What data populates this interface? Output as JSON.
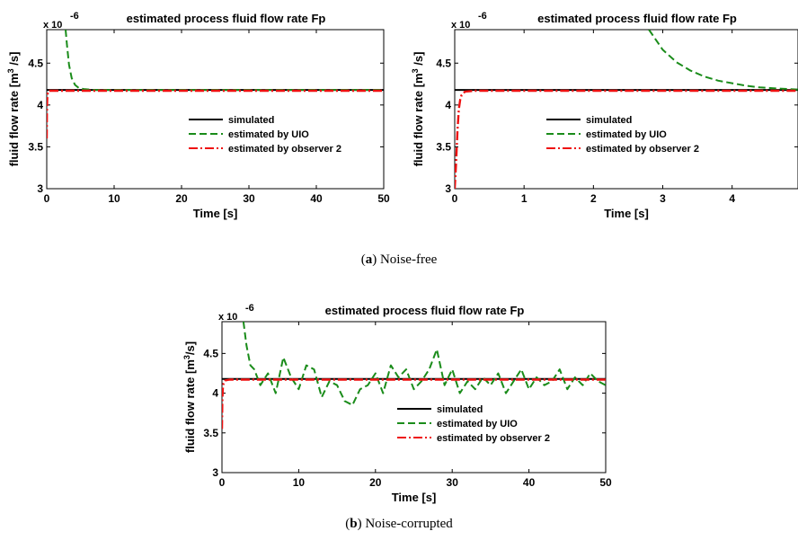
{
  "captions": {
    "a_letter": "a",
    "a_text": " Noise-free",
    "b_letter": "b",
    "b_text": " Noise-corrupted"
  },
  "colors": {
    "simulated": "#000000",
    "uio": "#1a8c1a",
    "observer2": "#ee1111"
  },
  "chart_data": [
    {
      "type": "line",
      "title": "estimated process fluid flow rate Fp",
      "xlabel": "Time [s]",
      "ylabel": "fluid flow rate [m³/s]",
      "ylabel_prefix": "fluid flow rate [m",
      "ylabel_sup": "3",
      "ylabel_suffix": " /s]",
      "multiplier_base": "x 10",
      "multiplier_exp": "-6",
      "xlim": [
        0,
        50
      ],
      "ylim": [
        3,
        4.9
      ],
      "xticks": [
        0,
        10,
        20,
        30,
        40,
        50
      ],
      "yticks": [
        3,
        3.5,
        4,
        4.5
      ],
      "grid": false,
      "legend_position": "center-right",
      "series": [
        {
          "name": "simulated",
          "style": "solid",
          "x": [
            0,
            50
          ],
          "y": [
            4.18,
            4.18
          ]
        },
        {
          "name": "estimated by UIO",
          "style": "dashed",
          "x": [
            2.8,
            3.0,
            3.3,
            3.7,
            4.2,
            4.8,
            5.5,
            7,
            10,
            50
          ],
          "y": [
            4.9,
            4.72,
            4.48,
            4.32,
            4.24,
            4.2,
            4.19,
            4.18,
            4.18,
            4.18
          ]
        },
        {
          "name": "estimated by observer 2",
          "style": "dashdot",
          "x": [
            0,
            0.03,
            0.06,
            0.1,
            0.2,
            0.4,
            1,
            50
          ],
          "y": [
            3.6,
            3.9,
            4.05,
            4.12,
            4.16,
            4.17,
            4.17,
            4.17
          ]
        }
      ]
    },
    {
      "type": "line",
      "title": "estimated process fluid flow rate Fp",
      "xlabel": "Time [s]",
      "ylabel": "fluid flow rate [m³/s]",
      "ylabel_prefix": "fluid flow rate [m",
      "ylabel_sup": "3",
      "ylabel_suffix": " /s]",
      "multiplier_base": "x 10",
      "multiplier_exp": "-6",
      "xlim": [
        0,
        4.95
      ],
      "ylim": [
        3,
        4.9
      ],
      "xticks": [
        0,
        1,
        2,
        3,
        4
      ],
      "yticks": [
        3,
        3.5,
        4,
        4.5
      ],
      "grid": false,
      "legend_position": "center-right",
      "series": [
        {
          "name": "simulated",
          "style": "solid",
          "x": [
            0,
            4.95
          ],
          "y": [
            4.18,
            4.18
          ]
        },
        {
          "name": "estimated by UIO",
          "style": "dashed",
          "x": [
            2.8,
            3.0,
            3.2,
            3.4,
            3.6,
            3.8,
            4.0,
            4.2,
            4.4,
            4.6,
            4.8,
            4.95
          ],
          "y": [
            4.9,
            4.66,
            4.51,
            4.41,
            4.34,
            4.29,
            4.26,
            4.23,
            4.21,
            4.2,
            4.19,
            4.185
          ]
        },
        {
          "name": "estimated by observer 2",
          "style": "dashdot",
          "x": [
            0,
            0.02,
            0.04,
            0.06,
            0.08,
            0.1,
            0.15,
            0.3,
            4.95
          ],
          "y": [
            3.0,
            3.3,
            3.7,
            3.95,
            4.07,
            4.12,
            4.16,
            4.17,
            4.17
          ]
        }
      ]
    },
    {
      "type": "line",
      "title": "estimated process fluid flow rate Fp",
      "xlabel": "Time [s]",
      "ylabel": "fluid flow rate [m³/s]",
      "ylabel_prefix": "fluid flow rate [m",
      "ylabel_sup": "3",
      "ylabel_suffix": "/s]",
      "multiplier_base": "x 10",
      "multiplier_exp": "-6",
      "xlim": [
        0,
        50
      ],
      "ylim": [
        3,
        4.9
      ],
      "xticks": [
        0,
        10,
        20,
        30,
        40,
        50
      ],
      "yticks": [
        3,
        3.5,
        4,
        4.5
      ],
      "grid": false,
      "legend_position": "lower-right",
      "series": [
        {
          "name": "simulated",
          "style": "solid",
          "x": [
            0,
            50
          ],
          "y": [
            4.18,
            4.18
          ]
        },
        {
          "name": "estimated by UIO",
          "style": "dashed",
          "x": [
            2.8,
            3.2,
            3.7,
            4.2,
            5,
            6,
            7,
            8,
            9,
            10,
            11,
            12,
            13,
            14,
            15,
            16,
            17,
            18,
            19,
            20,
            21,
            22,
            23,
            24,
            25,
            26,
            27,
            28,
            29,
            30,
            31,
            32,
            33,
            34,
            35,
            36,
            37,
            38,
            39,
            40,
            41,
            42,
            43,
            44,
            45,
            46,
            47,
            48,
            49,
            50
          ],
          "y": [
            4.9,
            4.6,
            4.35,
            4.3,
            4.1,
            4.25,
            4.0,
            4.45,
            4.2,
            4.05,
            4.35,
            4.3,
            3.95,
            4.15,
            4.1,
            3.9,
            3.85,
            4.05,
            4.1,
            4.25,
            4.0,
            4.35,
            4.2,
            4.3,
            4.05,
            4.15,
            4.3,
            4.55,
            4.1,
            4.3,
            4.0,
            4.15,
            4.05,
            4.2,
            4.1,
            4.25,
            4.0,
            4.15,
            4.3,
            4.05,
            4.2,
            4.1,
            4.15,
            4.3,
            4.05,
            4.2,
            4.1,
            4.25,
            4.15,
            4.1
          ]
        },
        {
          "name": "estimated by observer 2",
          "style": "dashdot",
          "x": [
            0,
            0.05,
            0.1,
            0.2,
            0.4,
            1,
            50
          ],
          "y": [
            3.55,
            3.9,
            4.05,
            4.12,
            4.16,
            4.17,
            4.17
          ]
        }
      ]
    }
  ]
}
